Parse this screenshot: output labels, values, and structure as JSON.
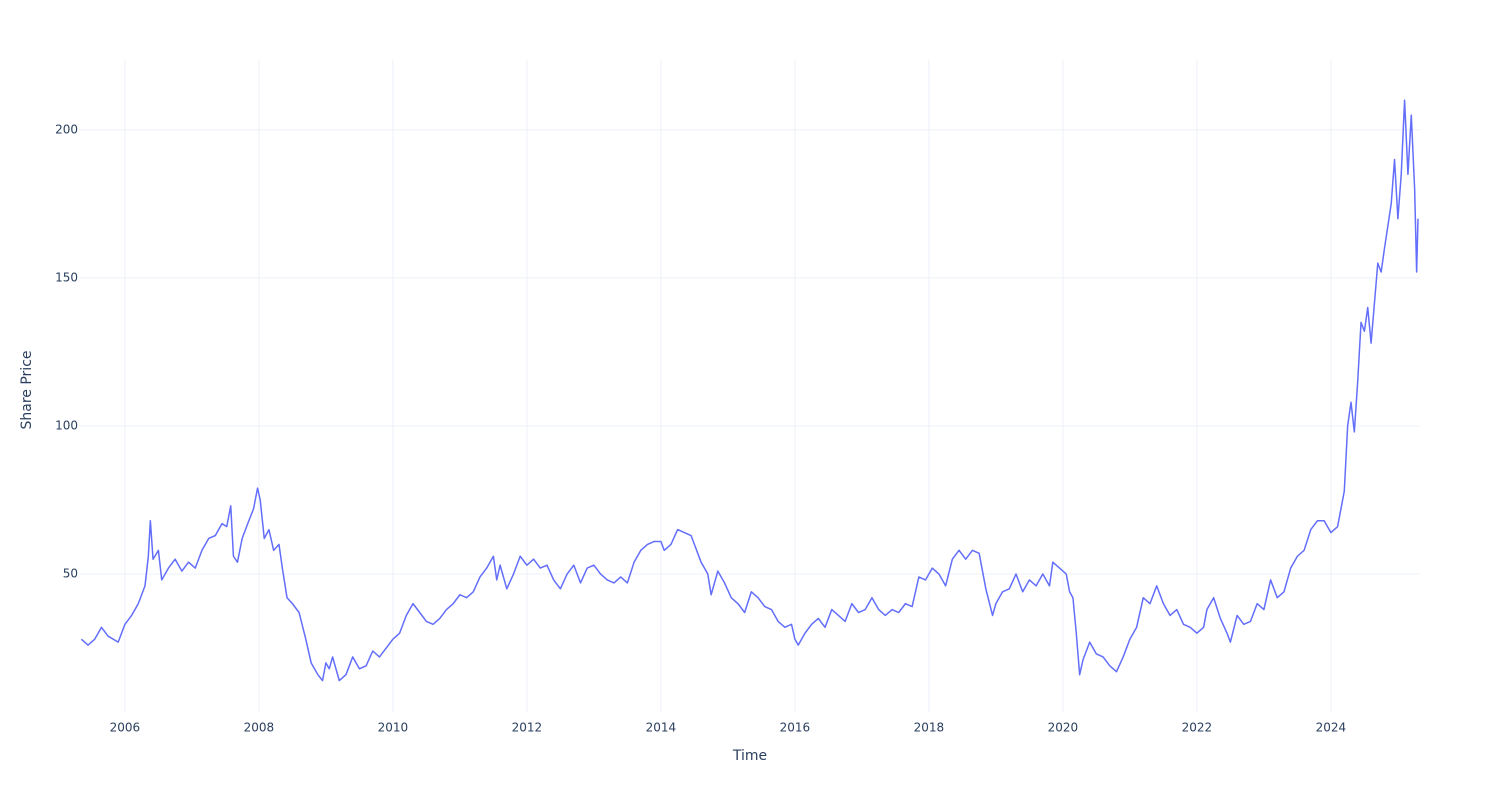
{
  "chart_data": {
    "type": "line",
    "xlabel": "Time",
    "ylabel": "Share Price",
    "xlim": [
      2005.33,
      2025.33
    ],
    "ylim": [
      3.4,
      223.6
    ],
    "xticks": [
      2006,
      2008,
      2010,
      2012,
      2014,
      2016,
      2018,
      2020,
      2022,
      2024
    ],
    "yticks": [
      50,
      100,
      150,
      200
    ],
    "grid": true,
    "series": [
      {
        "name": "Share Price",
        "color": "#636efa",
        "x": [
          2005.35,
          2005.45,
          2005.55,
          2005.65,
          2005.75,
          2005.9,
          2006.0,
          2006.1,
          2006.2,
          2006.3,
          2006.35,
          2006.38,
          2006.42,
          2006.5,
          2006.55,
          2006.65,
          2006.75,
          2006.85,
          2006.95,
          2007.05,
          2007.15,
          2007.25,
          2007.35,
          2007.45,
          2007.52,
          2007.58,
          2007.62,
          2007.68,
          2007.75,
          2007.85,
          2007.92,
          2007.98,
          2008.02,
          2008.08,
          2008.15,
          2008.22,
          2008.3,
          2008.35,
          2008.42,
          2008.5,
          2008.6,
          2008.7,
          2008.78,
          2008.88,
          2008.95,
          2009.0,
          2009.05,
          2009.1,
          2009.2,
          2009.3,
          2009.4,
          2009.5,
          2009.6,
          2009.7,
          2009.8,
          2009.9,
          2010.0,
          2010.1,
          2010.2,
          2010.3,
          2010.4,
          2010.5,
          2010.6,
          2010.7,
          2010.8,
          2010.9,
          2011.0,
          2011.1,
          2011.2,
          2011.3,
          2011.4,
          2011.5,
          2011.55,
          2011.6,
          2011.7,
          2011.8,
          2011.9,
          2012.0,
          2012.1,
          2012.2,
          2012.3,
          2012.4,
          2012.5,
          2012.6,
          2012.7,
          2012.8,
          2012.9,
          2013.0,
          2013.1,
          2013.2,
          2013.3,
          2013.4,
          2013.5,
          2013.6,
          2013.7,
          2013.8,
          2013.9,
          2014.0,
          2014.05,
          2014.15,
          2014.25,
          2014.35,
          2014.45,
          2014.5,
          2014.6,
          2014.7,
          2014.75,
          2014.85,
          2014.95,
          2015.05,
          2015.15,
          2015.25,
          2015.35,
          2015.45,
          2015.55,
          2015.65,
          2015.75,
          2015.85,
          2015.95,
          2016.0,
          2016.05,
          2016.15,
          2016.25,
          2016.35,
          2016.45,
          2016.55,
          2016.65,
          2016.75,
          2016.85,
          2016.95,
          2017.05,
          2017.15,
          2017.25,
          2017.35,
          2017.45,
          2017.55,
          2017.65,
          2017.75,
          2017.85,
          2017.95,
          2018.05,
          2018.15,
          2018.25,
          2018.35,
          2018.45,
          2018.55,
          2018.65,
          2018.75,
          2018.85,
          2018.95,
          2019.0,
          2019.1,
          2019.2,
          2019.3,
          2019.4,
          2019.5,
          2019.6,
          2019.7,
          2019.8,
          2019.85,
          2019.95,
          2020.05,
          2020.1,
          2020.15,
          2020.2,
          2020.25,
          2020.3,
          2020.4,
          2020.5,
          2020.6,
          2020.7,
          2020.8,
          2020.9,
          2021.0,
          2021.1,
          2021.2,
          2021.3,
          2021.4,
          2021.5,
          2021.6,
          2021.7,
          2021.8,
          2021.9,
          2022.0,
          2022.1,
          2022.15,
          2022.25,
          2022.35,
          2022.45,
          2022.5,
          2022.6,
          2022.7,
          2022.8,
          2022.9,
          2023.0,
          2023.1,
          2023.2,
          2023.3,
          2023.4,
          2023.5,
          2023.6,
          2023.7,
          2023.8,
          2023.9,
          2024.0,
          2024.1,
          2024.2,
          2024.25,
          2024.3,
          2024.35,
          2024.4,
          2024.45,
          2024.5,
          2024.55,
          2024.6,
          2024.7,
          2024.75,
          2024.8,
          2024.9,
          2024.95,
          2025.0,
          2025.05,
          2025.1,
          2025.15,
          2025.2,
          2025.25,
          2025.28,
          2025.3
        ],
        "values": [
          28,
          26,
          28,
          32,
          29,
          27,
          33,
          36,
          40,
          46,
          56,
          68,
          55,
          58,
          48,
          52,
          55,
          51,
          54,
          52,
          58,
          62,
          63,
          67,
          66,
          73,
          56,
          54,
          62,
          68,
          72,
          79,
          75,
          62,
          65,
          58,
          60,
          52,
          42,
          40,
          37,
          28,
          20,
          16,
          14,
          20,
          18,
          22,
          14,
          16,
          22,
          18,
          19,
          24,
          22,
          25,
          28,
          30,
          36,
          40,
          37,
          34,
          33,
          35,
          38,
          40,
          43,
          42,
          44,
          49,
          52,
          56,
          48,
          53,
          45,
          50,
          56,
          53,
          55,
          52,
          53,
          48,
          45,
          50,
          53,
          47,
          52,
          53,
          50,
          48,
          47,
          49,
          47,
          54,
          58,
          60,
          61,
          61,
          58,
          60,
          65,
          64,
          63,
          60,
          54,
          50,
          43,
          51,
          47,
          42,
          40,
          37,
          44,
          42,
          39,
          38,
          34,
          32,
          33,
          28,
          26,
          30,
          33,
          35,
          32,
          38,
          36,
          34,
          40,
          37,
          38,
          42,
          38,
          36,
          38,
          37,
          40,
          39,
          49,
          48,
          52,
          50,
          46,
          55,
          58,
          55,
          58,
          57,
          45,
          36,
          40,
          44,
          45,
          50,
          44,
          48,
          46,
          50,
          46,
          54,
          52,
          50,
          44,
          42,
          30,
          16,
          21,
          27,
          23,
          22,
          19,
          17,
          22,
          28,
          32,
          42,
          40,
          46,
          40,
          36,
          38,
          33,
          32,
          30,
          32,
          38,
          42,
          35,
          30,
          27,
          36,
          33,
          34,
          40,
          38,
          48,
          42,
          44,
          52,
          56,
          58,
          65,
          68,
          68,
          64,
          66,
          78,
          100,
          108,
          98,
          115,
          135,
          132,
          140,
          128,
          155,
          152,
          160,
          175,
          190,
          170,
          185,
          210,
          185,
          205,
          180,
          152,
          170
        ]
      }
    ]
  }
}
